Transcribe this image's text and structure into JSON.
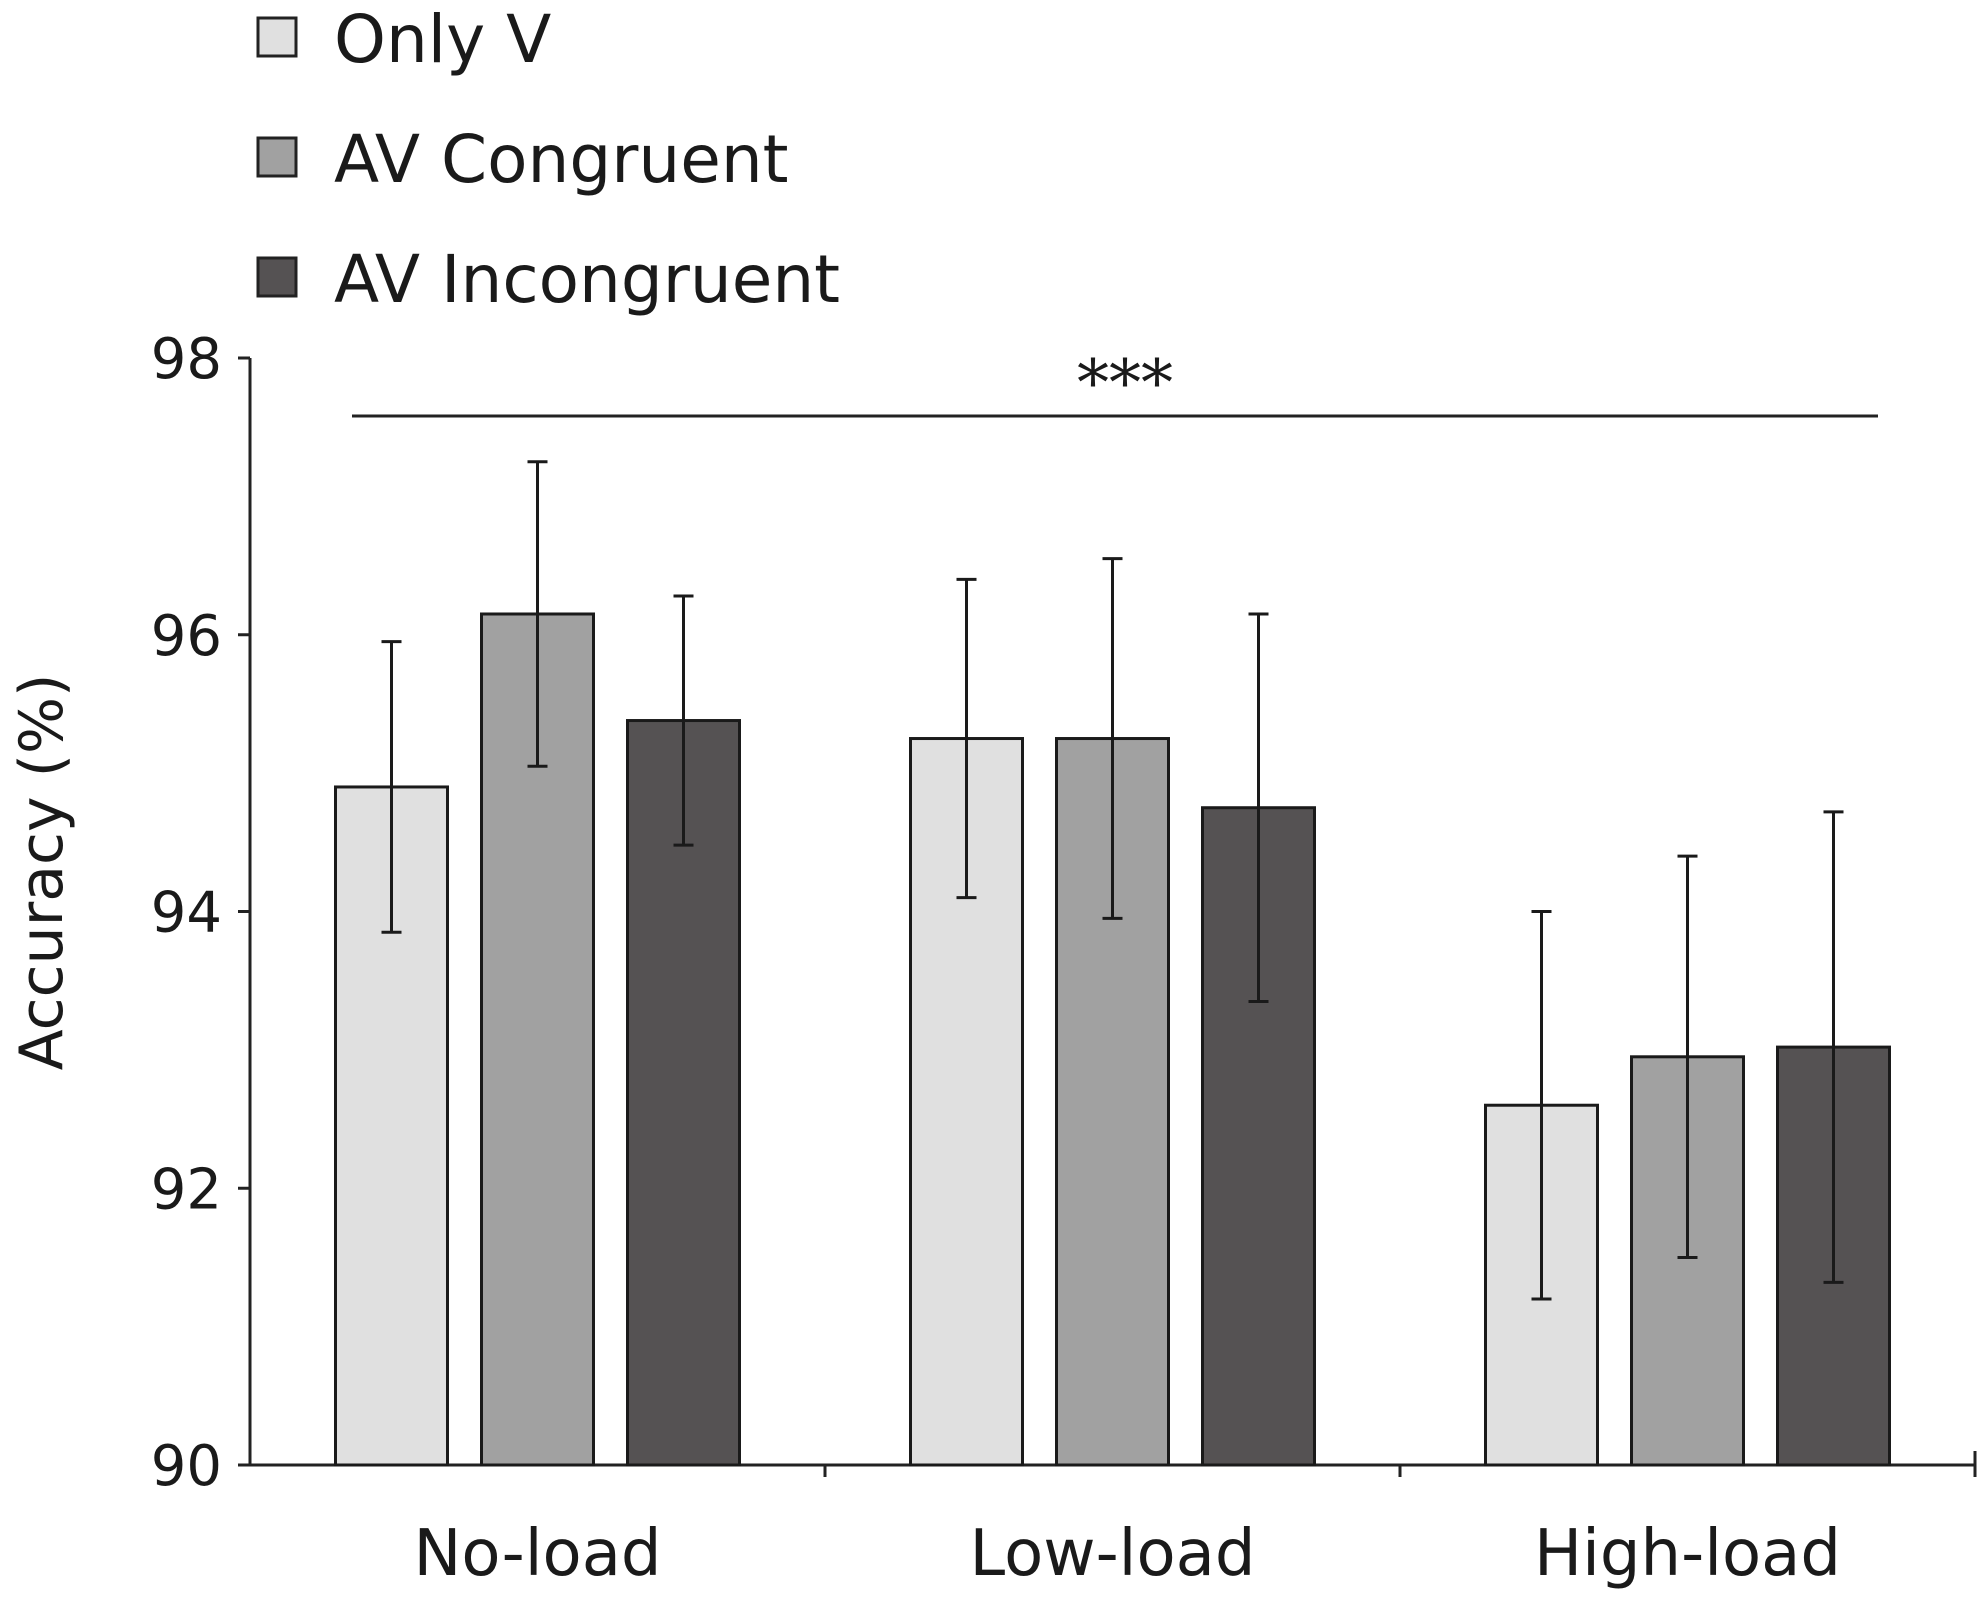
{
  "chart_data": {
    "type": "bar",
    "title": "",
    "xlabel": "",
    "ylabel": "Accuracy (%)",
    "ylim": [
      90,
      98
    ],
    "yticks": [
      "90",
      "92",
      "94",
      "96",
      "98"
    ],
    "categories": [
      "No-load",
      "Low-load",
      "High-load"
    ],
    "series": [
      {
        "name": "Only V",
        "color": "#e0e0e0",
        "values": [
          94.9,
          95.25,
          92.6
        ],
        "errors": [
          1.05,
          1.15,
          1.4
        ]
      },
      {
        "name": "AV Congruent",
        "color": "#a1a1a1",
        "values": [
          96.15,
          95.25,
          92.95
        ],
        "errors": [
          1.1,
          1.3,
          1.45
        ]
      },
      {
        "name": "AV Incongruent",
        "color": "#555253",
        "values": [
          95.38,
          94.75,
          93.02
        ],
        "errors": [
          0.9,
          1.4,
          1.7
        ]
      }
    ],
    "significance": {
      "label": "***",
      "span": "all-categories"
    },
    "legend_position": "top-left"
  }
}
